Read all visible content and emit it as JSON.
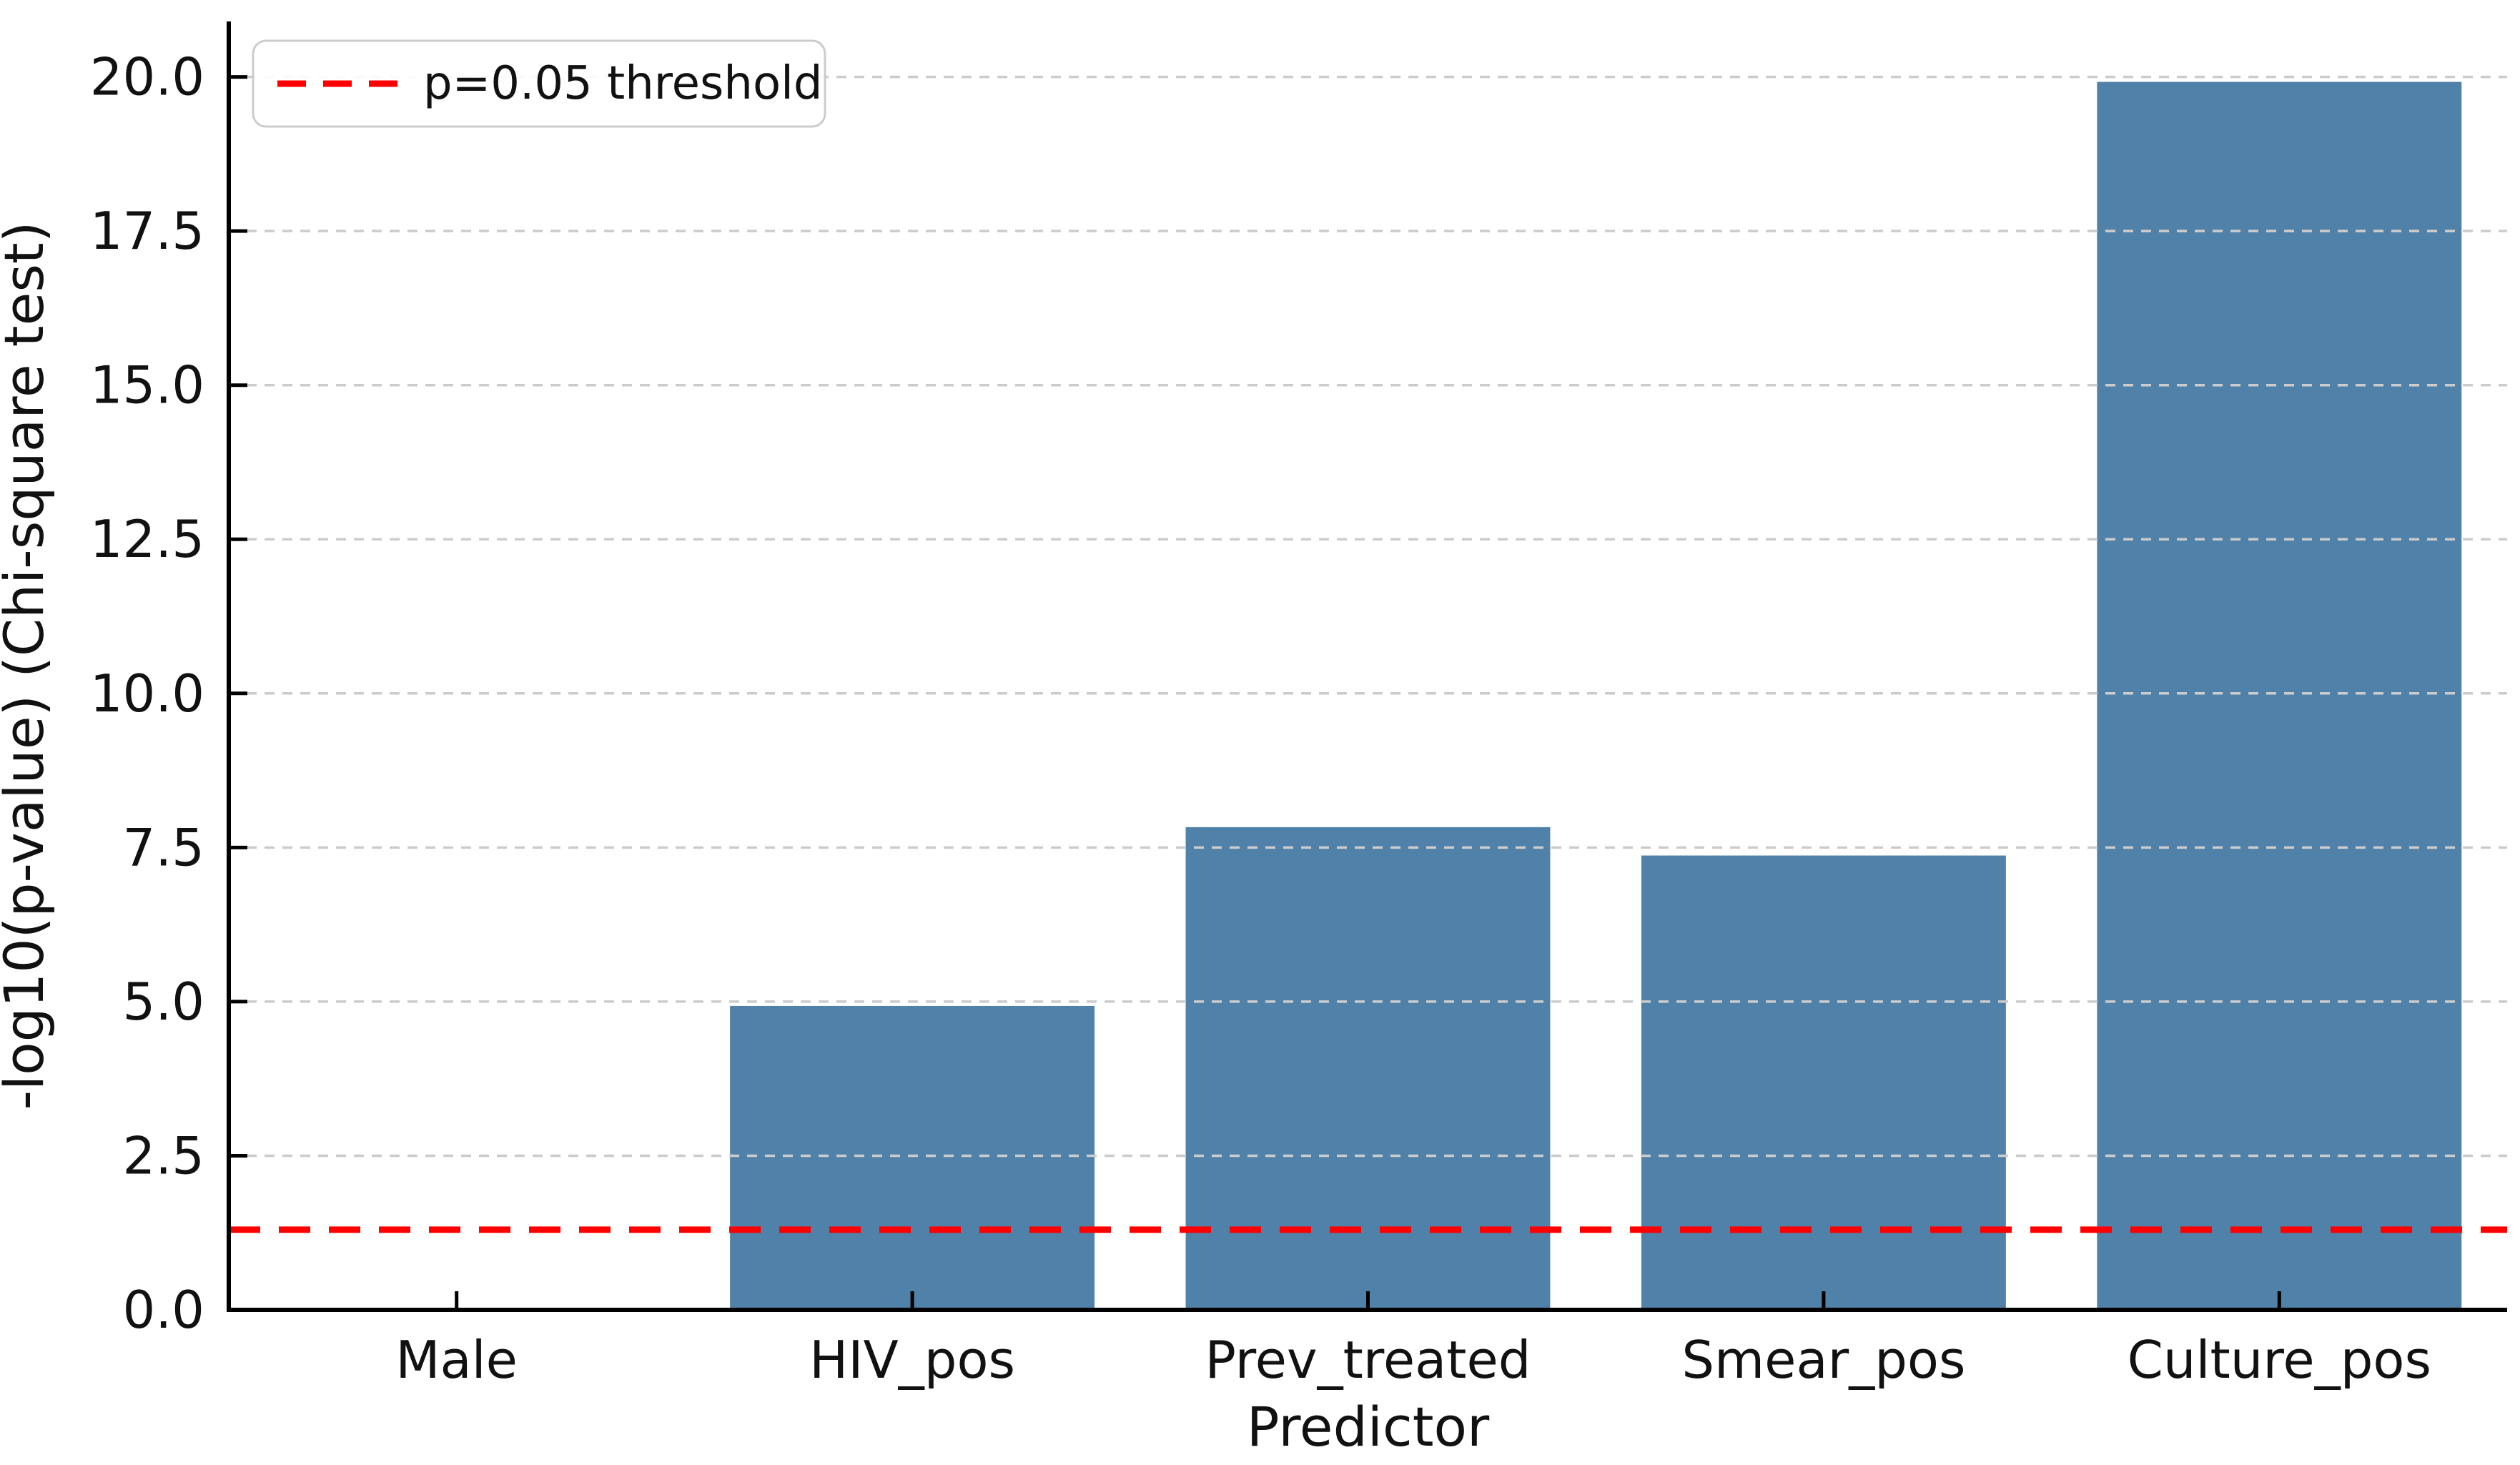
{
  "chart_data": {
    "type": "bar",
    "title": "",
    "xlabel": "Predictor",
    "ylabel": "-log10(p-value) (Chi-square test)",
    "categories": [
      "Male",
      "HIV_pos",
      "Prev_treated",
      "Smear_pos",
      "Culture_pos"
    ],
    "values": [
      0.0,
      4.93,
      7.83,
      7.37,
      19.92
    ],
    "ylim": [
      0,
      20.9
    ],
    "yticks": [
      0.0,
      2.5,
      5.0,
      7.5,
      10.0,
      12.5,
      15.0,
      17.5,
      20.0
    ],
    "ytick_labels": [
      "0.0",
      "2.5",
      "5.0",
      "7.5",
      "10.0",
      "12.5",
      "15.0",
      "17.5",
      "20.0"
    ],
    "grid": true,
    "grid_style": "dashed",
    "grid_color": "#cccccc",
    "bar_color": "#5081A8",
    "bar_width_fraction": 0.8,
    "axis_color": "#000000",
    "text_color": "#111111",
    "threshold_line": {
      "value": 1.301,
      "label": "p=0.05 threshold",
      "color": "#ff0000",
      "style": "dashed"
    },
    "legend": {
      "position": "upper-left",
      "entries": [
        {
          "label": "p=0.05 threshold",
          "color": "#ff0000",
          "line_style": "dashed"
        }
      ]
    }
  }
}
